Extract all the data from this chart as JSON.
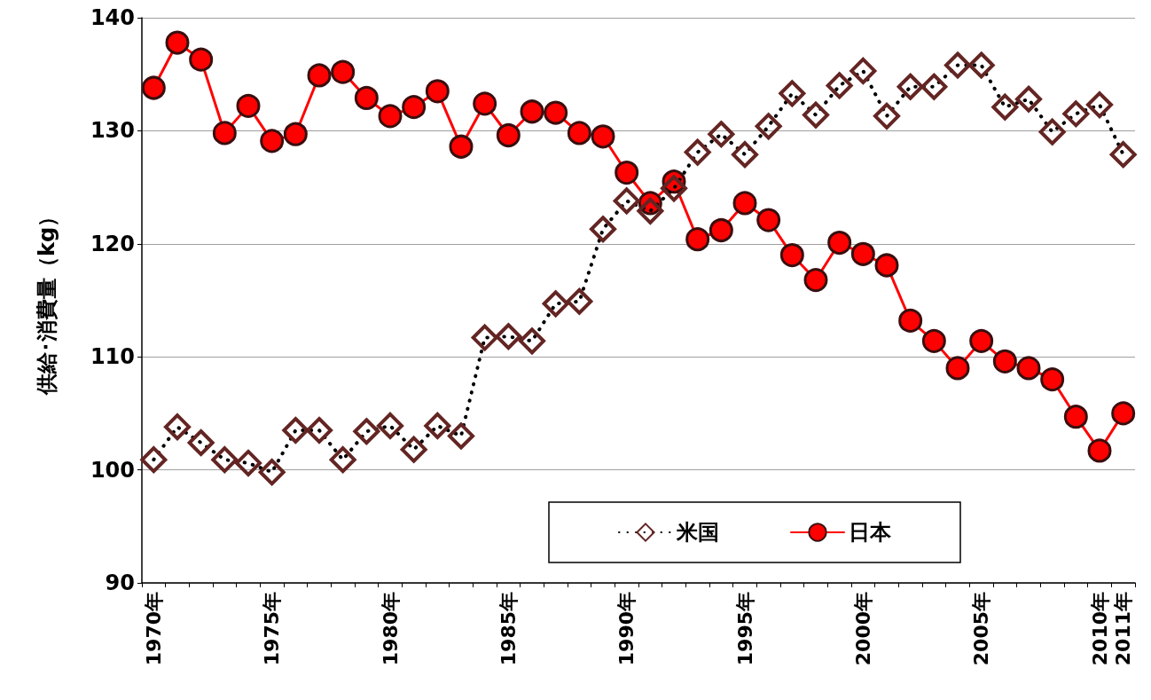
{
  "chart_data": {
    "type": "line",
    "ylabel": "供給･消費量（kg）",
    "categories": [
      "1970年",
      null,
      null,
      null,
      null,
      "1975年",
      null,
      null,
      null,
      null,
      "1980年",
      null,
      null,
      null,
      null,
      "1985年",
      null,
      null,
      null,
      null,
      "1990年",
      null,
      null,
      null,
      null,
      "1995年",
      null,
      null,
      null,
      null,
      "2000年",
      null,
      null,
      null,
      null,
      "2005年",
      null,
      null,
      null,
      null,
      "2010年",
      "2011年"
    ],
    "series": [
      {
        "name": "米国",
        "color": "#632523",
        "marker": "diamond",
        "line_style": "dotted",
        "values": [
          100.9,
          103.8,
          102.4,
          100.9,
          100.6,
          99.8,
          103.5,
          103.5,
          100.9,
          103.4,
          103.9,
          101.8,
          103.9,
          103.0,
          111.7,
          111.8,
          111.4,
          114.7,
          114.9,
          121.3,
          123.8,
          122.9,
          124.9,
          128.1,
          129.7,
          127.9,
          130.4,
          133.3,
          131.4,
          134.0,
          135.3,
          131.3,
          133.9,
          133.9,
          135.8,
          135.8,
          132.1,
          132.8,
          129.9,
          131.5,
          132.3,
          127.9
        ]
      },
      {
        "name": "日本",
        "color": "#ff0000",
        "marker": "circle",
        "line_style": "solid",
        "values": [
          133.8,
          137.8,
          136.3,
          129.8,
          132.2,
          129.1,
          129.7,
          134.9,
          135.2,
          132.9,
          131.3,
          132.1,
          133.5,
          128.6,
          132.4,
          129.6,
          131.7,
          131.6,
          129.8,
          129.5,
          126.3,
          123.6,
          125.5,
          120.4,
          121.2,
          123.6,
          122.1,
          119.0,
          116.8,
          120.1,
          119.1,
          118.1,
          113.2,
          111.4,
          109.0,
          111.4,
          109.6,
          109.0,
          108.0,
          104.7,
          101.7,
          105.0
        ]
      }
    ],
    "ylim": [
      90,
      140
    ],
    "yticks": [
      90,
      100,
      110,
      120,
      130,
      140
    ],
    "grid": "y",
    "legend": "bottom right"
  }
}
